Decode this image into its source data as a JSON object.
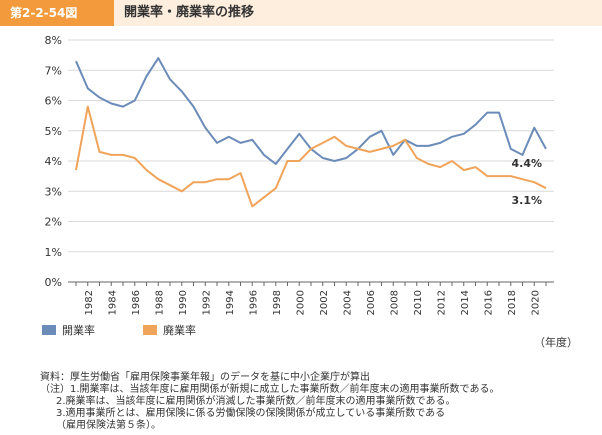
{
  "header": {
    "figure_number": "第2-2-54図",
    "title": "開業率・廃業率の推移"
  },
  "colors": {
    "opening": "#6b8cb8",
    "closing": "#f0a45a",
    "header_accent": "#f39a3c",
    "header_bg": "#fdeedd"
  },
  "chart_data": {
    "type": "line",
    "title": "開業率・廃業率の推移",
    "xlabel": "（年度）",
    "ylabel": "",
    "x": [
      1981,
      1982,
      1983,
      1984,
      1985,
      1986,
      1987,
      1988,
      1989,
      1990,
      1991,
      1992,
      1993,
      1994,
      1995,
      1996,
      1997,
      1998,
      1999,
      2000,
      2001,
      2002,
      2003,
      2004,
      2005,
      2006,
      2007,
      2008,
      2009,
      2010,
      2011,
      2012,
      2013,
      2014,
      2015,
      2016,
      2017,
      2018,
      2019,
      2020,
      2021
    ],
    "x_tick_labels": [
      "1982",
      "1984",
      "1986",
      "1988",
      "1990",
      "1992",
      "1994",
      "1996",
      "1998",
      "2000",
      "2002",
      "2004",
      "2006",
      "2008",
      "2010",
      "2012",
      "2014",
      "2016",
      "2018",
      "2020"
    ],
    "y_tick_labels": [
      "0%",
      "1%",
      "2%",
      "3%",
      "4%",
      "5%",
      "6%",
      "7%",
      "8%"
    ],
    "ylim": [
      0,
      8
    ],
    "xlim": [
      1981,
      2021
    ],
    "grid": "horizontal",
    "legend_position": "bottom-left",
    "series": [
      {
        "name": "開業率",
        "color": "#6b8cb8",
        "values": [
          7.3,
          6.4,
          6.1,
          5.9,
          5.8,
          6.0,
          6.8,
          7.4,
          6.7,
          6.3,
          5.8,
          5.1,
          4.6,
          4.8,
          4.6,
          4.7,
          4.2,
          3.9,
          4.4,
          4.9,
          4.4,
          4.1,
          4.0,
          4.1,
          4.4,
          4.8,
          5.0,
          4.2,
          4.7,
          4.5,
          4.5,
          4.6,
          4.8,
          4.9,
          5.2,
          5.6,
          5.6,
          4.4,
          4.2,
          5.1,
          4.4
        ]
      },
      {
        "name": "廃業率",
        "color": "#f0a45a",
        "values": [
          3.7,
          5.8,
          4.3,
          4.2,
          4.2,
          4.1,
          3.7,
          3.4,
          3.2,
          3.0,
          3.3,
          3.3,
          3.4,
          3.4,
          3.6,
          2.5,
          2.8,
          3.1,
          4.0,
          4.0,
          4.4,
          4.6,
          4.8,
          4.5,
          4.4,
          4.3,
          4.4,
          4.5,
          4.7,
          4.1,
          3.9,
          3.8,
          4.0,
          3.7,
          3.8,
          3.5,
          3.5,
          3.5,
          3.4,
          3.3,
          3.1
        ]
      }
    ],
    "annotations": [
      {
        "text": "4.4%",
        "series": "開業率",
        "x": 2021,
        "y": 4.4
      },
      {
        "text": "3.1%",
        "series": "廃業率",
        "x": 2021,
        "y": 3.1
      }
    ]
  },
  "legend": {
    "opening_label": "開業率",
    "closing_label": "廃業率"
  },
  "notes": [
    "資料：厚生労働省「雇用保険事業年報」のデータを基に中小企業庁が算出",
    "（注）1.開業率は、当該年度に雇用関係が新規に成立した事業所数／前年度末の適用事業所数である。",
    "2.廃業率は、当該年度に雇用関係が消滅した事業所数／前年度末の適用事業所数である。",
    "3.適用事業所とは、雇用保険に係る労働保険の保険関係が成立している事業所数である",
    "（雇用保険法第５条）。"
  ]
}
